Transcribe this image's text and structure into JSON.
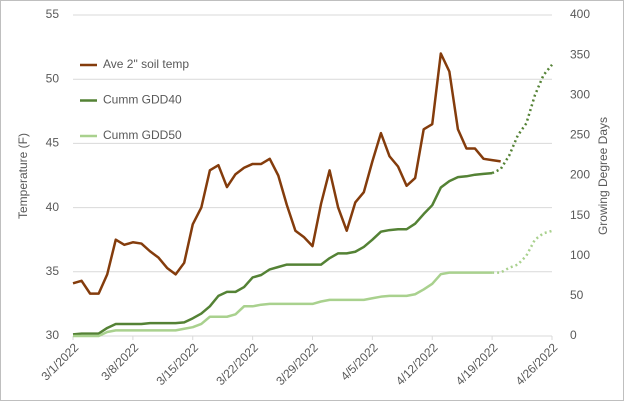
{
  "chart_data": {
    "type": "line",
    "ylabel": "Temperature (F)",
    "y2label": "Growing Degree Days",
    "x": [
      "2022-03-01",
      "2022-03-02",
      "2022-03-03",
      "2022-03-04",
      "2022-03-05",
      "2022-03-06",
      "2022-03-07",
      "2022-03-08",
      "2022-03-09",
      "2022-03-10",
      "2022-03-11",
      "2022-03-12",
      "2022-03-13",
      "2022-03-14",
      "2022-03-15",
      "2022-03-16",
      "2022-03-17",
      "2022-03-18",
      "2022-03-19",
      "2022-03-20",
      "2022-03-21",
      "2022-03-22",
      "2022-03-23",
      "2022-03-24",
      "2022-03-25",
      "2022-03-26",
      "2022-03-27",
      "2022-03-28",
      "2022-03-29",
      "2022-03-30",
      "2022-03-31",
      "2022-04-01",
      "2022-04-02",
      "2022-04-03",
      "2022-04-04",
      "2022-04-05",
      "2022-04-06",
      "2022-04-07",
      "2022-04-08",
      "2022-04-09",
      "2022-04-10",
      "2022-04-11",
      "2022-04-12",
      "2022-04-13",
      "2022-04-14",
      "2022-04-15",
      "2022-04-16",
      "2022-04-17",
      "2022-04-18",
      "2022-04-19",
      "2022-04-20",
      "2022-04-21",
      "2022-04-22",
      "2022-04-23",
      "2022-04-24",
      "2022-04-25",
      "2022-04-26"
    ],
    "xlim": [
      "2022-03-01",
      "2022-04-26"
    ],
    "xticks": [
      {
        "value": "2022-03-01",
        "label": "3/1/2022"
      },
      {
        "value": "2022-03-08",
        "label": "3/8/2022"
      },
      {
        "value": "2022-03-15",
        "label": "3/15/2022"
      },
      {
        "value": "2022-03-22",
        "label": "3/22/2022"
      },
      {
        "value": "2022-03-29",
        "label": "3/29/2022"
      },
      {
        "value": "2022-04-05",
        "label": "4/5/2022"
      },
      {
        "value": "2022-04-12",
        "label": "4/12/2022"
      },
      {
        "value": "2022-04-19",
        "label": "4/19/2022"
      },
      {
        "value": "2022-04-26",
        "label": "4/26/2022"
      }
    ],
    "ylim": [
      30,
      55
    ],
    "yticks": [
      30,
      35,
      40,
      45,
      50,
      55
    ],
    "y2lim": [
      0,
      400
    ],
    "y2ticks": [
      0,
      50,
      100,
      150,
      200,
      250,
      300,
      350,
      400
    ],
    "grid": true,
    "legend": "upper left",
    "series": [
      {
        "name": "Ave 2\" soil temp",
        "color": "#843c0c",
        "values": [
          34.1,
          34.3,
          33.3,
          33.3,
          34.8,
          37.5,
          37.1,
          37.3,
          37.2,
          36.6,
          36.1,
          35.3,
          34.8,
          35.7,
          38.7,
          40,
          42.9,
          43.3,
          41.6,
          42.6,
          43.1,
          43.4,
          43.4,
          43.8,
          42.5,
          40.2,
          38.2,
          37.7,
          37,
          40.3,
          42.9,
          40,
          38.2,
          40.4,
          41.2,
          43.6,
          45.8,
          44,
          43.2,
          41.7,
          42.3,
          46.1,
          46.5,
          52,
          50.6,
          46.1,
          44.6,
          44.6,
          43.8,
          43.7,
          43.6,
          null,
          null,
          null,
          null,
          null,
          null
        ]
      },
      {
        "name": "Cumm GDD40",
        "color": "#548235",
        "axis": "y2",
        "values": [
          2,
          3,
          3,
          3,
          10,
          15,
          15,
          15,
          15,
          16,
          16,
          16,
          16,
          17,
          22,
          28,
          37,
          50,
          55,
          55,
          61,
          73,
          76,
          83,
          86,
          89,
          89,
          89,
          89,
          89,
          97,
          103,
          103,
          105,
          111,
          120,
          130,
          132,
          133,
          133,
          140,
          152,
          163,
          185,
          193,
          198,
          199,
          201,
          202,
          203,
          null,
          null,
          null,
          null,
          null,
          null,
          null
        ]
      },
      {
        "name": "Cumm GDD50",
        "color": "#a9d18e",
        "axis": "y2",
        "values": [
          0,
          0,
          0,
          0,
          5,
          7,
          7,
          7,
          7,
          7,
          7,
          7,
          7,
          9,
          11,
          15,
          24,
          24,
          24,
          27,
          37,
          37,
          39,
          40,
          40,
          40,
          40,
          40,
          40,
          43,
          45,
          45,
          45,
          45,
          45,
          47,
          49,
          50,
          50,
          50,
          52,
          58,
          65,
          77,
          79,
          79,
          79,
          79,
          79,
          79,
          null,
          null,
          null,
          null,
          null,
          null,
          null
        ]
      },
      {
        "color": "#548235",
        "axis": "y2",
        "dotted": true,
        "values": [
          null,
          null,
          null,
          null,
          null,
          null,
          null,
          null,
          null,
          null,
          null,
          null,
          null,
          null,
          null,
          null,
          null,
          null,
          null,
          null,
          null,
          null,
          null,
          null,
          null,
          null,
          null,
          null,
          null,
          null,
          null,
          null,
          null,
          null,
          null,
          null,
          null,
          null,
          null,
          null,
          null,
          null,
          null,
          null,
          null,
          null,
          null,
          null,
          null,
          203,
          208,
          225,
          250,
          265,
          300,
          325,
          338
        ]
      },
      {
        "color": "#a9d18e",
        "axis": "y2",
        "dotted": true,
        "values": [
          null,
          null,
          null,
          null,
          null,
          null,
          null,
          null,
          null,
          null,
          null,
          null,
          null,
          null,
          null,
          null,
          null,
          null,
          null,
          null,
          null,
          null,
          null,
          null,
          null,
          null,
          null,
          null,
          null,
          null,
          null,
          null,
          null,
          null,
          null,
          null,
          null,
          null,
          null,
          null,
          null,
          null,
          null,
          null,
          null,
          null,
          null,
          null,
          null,
          79,
          79,
          85,
          89,
          100,
          120,
          128,
          131
        ]
      }
    ]
  }
}
